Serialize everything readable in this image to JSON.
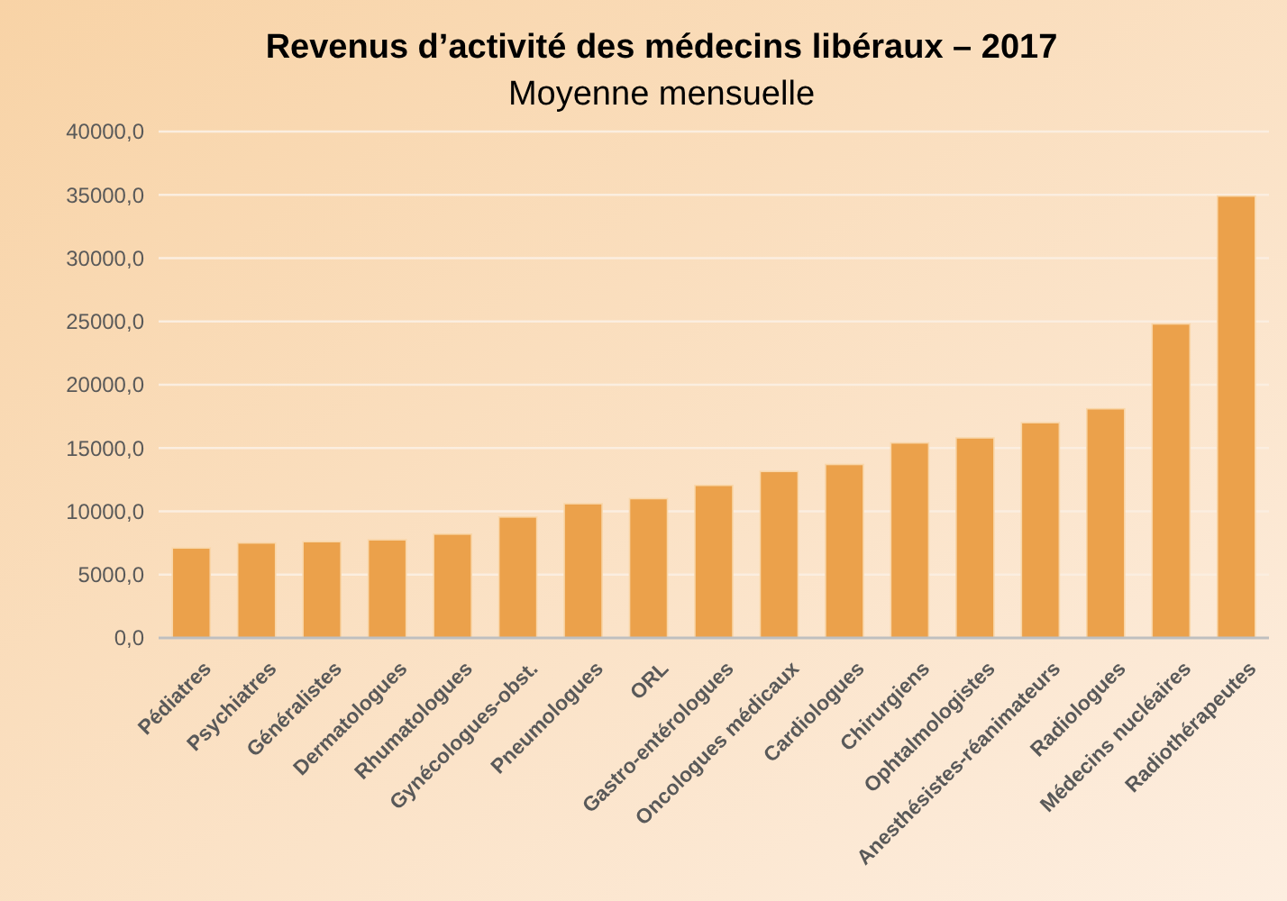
{
  "chart_data": {
    "type": "bar",
    "title": "Revenus d’activité des médecins libéraux – 2017",
    "subtitle": "Moyenne mensuelle",
    "categories": [
      "Pédiatres",
      "Psychiatres",
      "Généralistes",
      "Dermatologues",
      "Rhumatologues",
      "Gynécologues-obst.",
      "Pneumologues",
      "ORL",
      "Gastro-entérologues",
      "Oncologues médicaux",
      "Cardiologues",
      "Chirurgiens",
      "Ophtalmologistes",
      "Anesthésistes-réanimateurs",
      "Radiologues",
      "Médecins nucléaires",
      "Radiothérapeutes"
    ],
    "values": [
      7100,
      7500,
      7600,
      7750,
      8200,
      9550,
      10600,
      11000,
      12050,
      13150,
      13700,
      15400,
      15800,
      17000,
      18100,
      24800,
      34900
    ],
    "color": "#eba14b",
    "ylim": [
      0,
      40000
    ],
    "yticks": [
      {
        "value": 0,
        "label": "0,0"
      },
      {
        "value": 5000,
        "label": "5000,0"
      },
      {
        "value": 10000,
        "label": "10000,0"
      },
      {
        "value": 15000,
        "label": "15000,0"
      },
      {
        "value": 20000,
        "label": "20000,0"
      },
      {
        "value": 25000,
        "label": "25000,0"
      },
      {
        "value": 30000,
        "label": "30000,0"
      },
      {
        "value": 35000,
        "label": "35000,0"
      },
      {
        "value": 40000,
        "label": "40000,0"
      }
    ],
    "grid": "y"
  }
}
